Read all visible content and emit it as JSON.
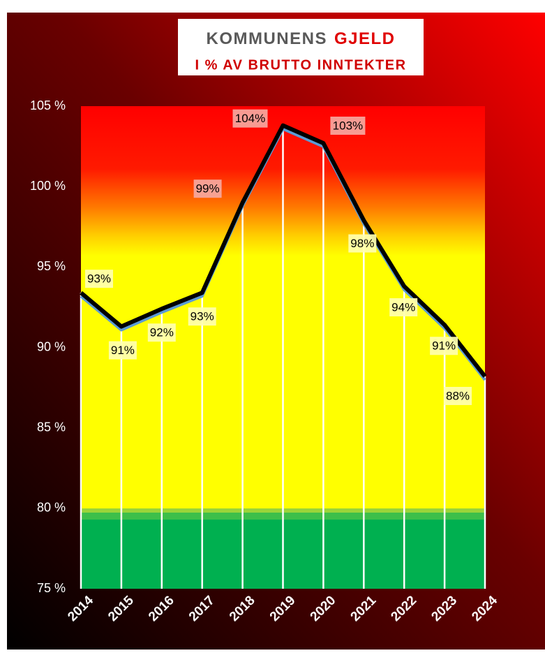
{
  "chart_data": {
    "type": "line",
    "title_prefix": "KOMMUNENS",
    "title_highlight": "GJELD",
    "subtitle": "I % AV BRUTTO INNTEKTER",
    "categories": [
      "2014",
      "2015",
      "2016",
      "2017",
      "2018",
      "2019",
      "2020",
      "2021",
      "2022",
      "2023",
      "2024"
    ],
    "values": [
      93.4,
      91.3,
      92.4,
      93.4,
      99.0,
      103.8,
      102.7,
      97.9,
      93.8,
      91.4,
      88.2
    ],
    "value_labels": [
      "93%",
      "91%",
      "92%",
      "93%",
      "99%",
      "104%",
      "103%",
      "98%",
      "94%",
      "91%",
      "88%"
    ],
    "color": "#000000",
    "ylim": [
      75,
      105
    ],
    "yticks": [
      {
        "value": 75,
        "label": "75 %"
      },
      {
        "value": 80,
        "label": "80 %"
      },
      {
        "value": 85,
        "label": "85 %"
      },
      {
        "value": 90,
        "label": "90 %"
      },
      {
        "value": 95,
        "label": "95 %"
      },
      {
        "value": 100,
        "label": "100 %"
      },
      {
        "value": 105,
        "label": "105 %"
      }
    ]
  }
}
